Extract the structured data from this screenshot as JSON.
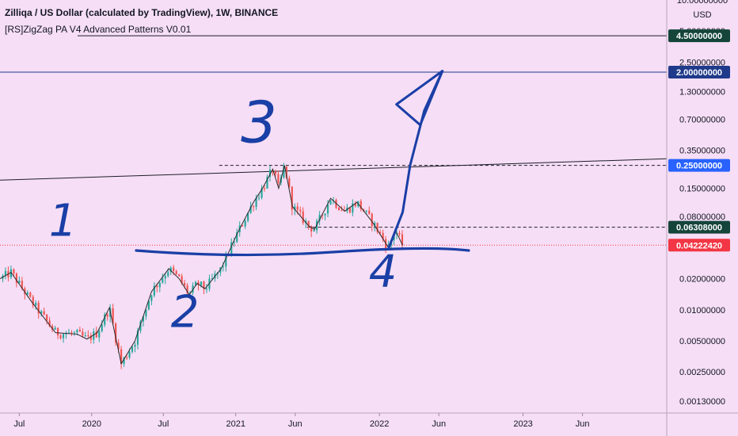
{
  "header": {
    "title": "Zilliqa / US Dollar (calculated by TradingView), 1W, BINANCE",
    "indicator": "[RS]ZigZag PA V4 Advanced Patterns V0.01"
  },
  "currency": "USD",
  "colors": {
    "background": "#f6def6",
    "bull": "#26a69a",
    "bear": "#ef5350",
    "ink": "#1a3fa6",
    "line_dark": "#1e1e28",
    "line_blue": "#1f3f8c",
    "price": "#f23645"
  },
  "chart_data": {
    "type": "candlestick",
    "y_scale": "log",
    "ylim": [
      0.001,
      10
    ],
    "xlim": [
      "2019-05-13",
      "2024-01-01"
    ],
    "price_ticks": [
      "10.00000000",
      "5.00000000",
      "2.50000000",
      "1.30000000",
      "0.70000000",
      "0.35000000",
      "0.15000000",
      "0.08000000",
      "0.04000000",
      "0.02000000",
      "0.01000000",
      "0.00500000",
      "0.00250000",
      "0.00130000"
    ],
    "time_ticks": [
      {
        "date": "2019-07-01",
        "label": "Jul"
      },
      {
        "date": "2020-01-01",
        "label": "2020"
      },
      {
        "date": "2020-07-01",
        "label": "Jul"
      },
      {
        "date": "2021-01-01",
        "label": "2021"
      },
      {
        "date": "2021-06-01",
        "label": "Jun"
      },
      {
        "date": "2022-01-01",
        "label": "2022"
      },
      {
        "date": "2022-06-01",
        "label": "Jun"
      },
      {
        "date": "2023-01-01",
        "label": "2023"
      },
      {
        "date": "2023-06-01",
        "label": "Jun"
      }
    ],
    "price_path": [
      [
        "2019-05-13",
        0.02
      ],
      [
        "2019-06-10",
        0.023
      ],
      [
        "2019-08-01",
        0.012
      ],
      [
        "2019-10-01",
        0.006
      ],
      [
        "2019-11-25",
        0.0058
      ],
      [
        "2019-12-20",
        0.0052
      ],
      [
        "2020-01-15",
        0.006
      ],
      [
        "2020-02-15",
        0.0105
      ],
      [
        "2020-03-16",
        0.003
      ],
      [
        "2020-04-20",
        0.005
      ],
      [
        "2020-06-01",
        0.015
      ],
      [
        "2020-07-15",
        0.025
      ],
      [
        "2020-08-10",
        0.02
      ],
      [
        "2020-09-05",
        0.014
      ],
      [
        "2020-09-25",
        0.018
      ],
      [
        "2020-10-15",
        0.016
      ],
      [
        "2020-11-25",
        0.025
      ],
      [
        "2021-01-05",
        0.055
      ],
      [
        "2021-02-15",
        0.11
      ],
      [
        "2021-03-10",
        0.15
      ],
      [
        "2021-04-05",
        0.23
      ],
      [
        "2021-04-20",
        0.15
      ],
      [
        "2021-05-05",
        0.25
      ],
      [
        "2021-05-25",
        0.1
      ],
      [
        "2021-07-05",
        0.065
      ],
      [
        "2021-07-20",
        0.06
      ],
      [
        "2021-08-30",
        0.12
      ],
      [
        "2021-10-05",
        0.09
      ],
      [
        "2021-11-05",
        0.11
      ],
      [
        "2021-12-15",
        0.07
      ],
      [
        "2022-01-24",
        0.04
      ],
      [
        "2022-02-10",
        0.06
      ],
      [
        "2022-03-01",
        0.042
      ]
    ],
    "horizontal_levels": [
      {
        "price": 4.5,
        "label": "4.50000000",
        "style": "solid",
        "color": "#1e1e28"
      },
      {
        "price": 2.0,
        "label": "2.00000000",
        "style": "solid",
        "color": "#1f3f8c"
      },
      {
        "price": 0.25,
        "label": "0.25000000",
        "style": "dashed",
        "color": "#1e1e28"
      },
      {
        "price": 0.06308,
        "label": "0.06308000",
        "style": "dashed",
        "color": "#1e1e28"
      }
    ],
    "trendline": [
      [
        "2019-05-13",
        0.18
      ],
      [
        "2024-01-01",
        0.29
      ]
    ],
    "last_price": {
      "price": 0.0422242,
      "label": "0.04222420"
    },
    "annotations": [
      {
        "text": "1",
        "x": "2019-10-20",
        "price": 0.052
      },
      {
        "text": "2",
        "x": "2020-08-25",
        "price": 0.0068
      },
      {
        "text": "3",
        "x": "2021-03-01",
        "price": 0.42
      },
      {
        "text": "4",
        "x": "2022-01-10",
        "price": 0.0168
      }
    ],
    "arrow_path": [
      [
        "2022-01-25",
        0.04
      ],
      [
        "2022-03-01",
        0.088
      ],
      [
        "2022-03-20",
        0.25
      ],
      [
        "2022-04-25",
        0.85
      ],
      [
        "2022-06-10",
        2.05
      ]
    ]
  }
}
